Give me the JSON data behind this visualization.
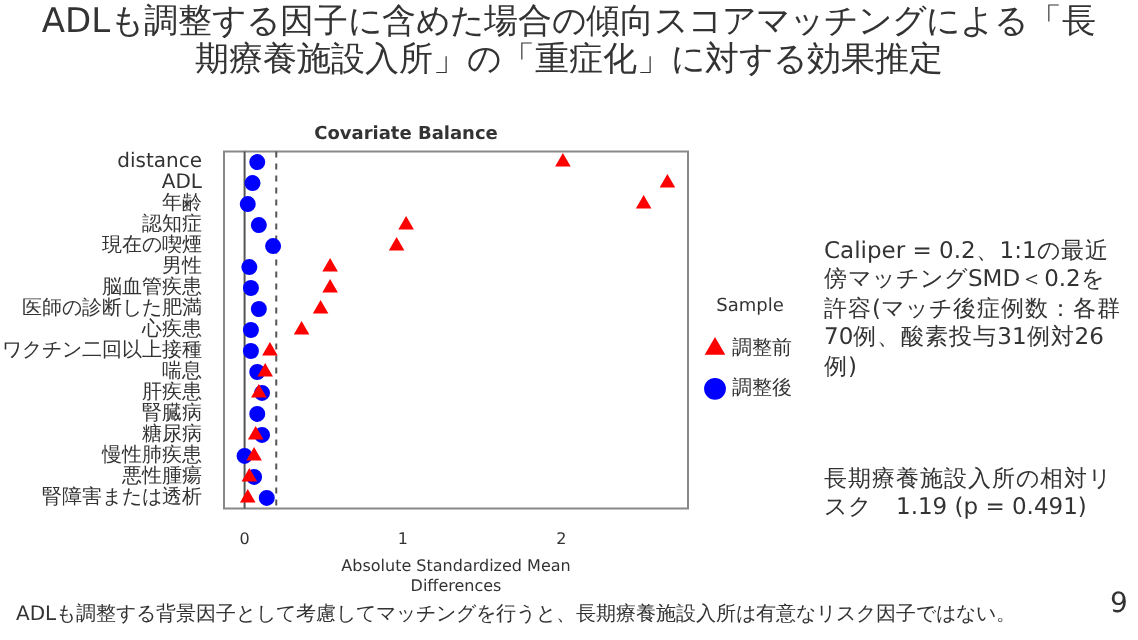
{
  "chart_data": {
    "type": "scatter",
    "orientation": "horizontal",
    "title": "ADLも調整する因子に含めた場合の傾向スコアマッチングによる「長期療養施設入所」の「重症化」に対する効果推定",
    "subtitle": "Covariate Balance",
    "xlabel": "Absolute Standardized Mean\nDifferences",
    "legend_title": "Sample",
    "categories": [
      "distance",
      "ADL",
      "年齢",
      "認知症",
      "現在の喫煙",
      "男性",
      "脳血管疾患",
      "医師の診断した肥満",
      "心疾患",
      "ワクチン二回以上接種",
      "喘息",
      "肝疾患",
      "腎臓病",
      "糖尿病",
      "慢性肺疾患",
      "悪性腫瘍",
      "腎障害または透析"
    ],
    "series": [
      {
        "name": "調整前",
        "color": "#ff0000",
        "marker": "triangle",
        "values": [
          2.01,
          2.67,
          2.52,
          1.02,
          0.96,
          0.54,
          0.54,
          0.48,
          0.36,
          0.16,
          0.13,
          0.09,
          null,
          0.07,
          0.06,
          0.03,
          0.02
        ]
      },
      {
        "name": "調整後",
        "color": "#0000ff",
        "marker": "circle",
        "values": [
          0.08,
          0.05,
          0.02,
          0.09,
          0.18,
          0.03,
          0.04,
          0.09,
          0.04,
          0.04,
          0.08,
          0.11,
          0.08,
          0.11,
          0.0,
          0.06,
          0.14
        ]
      }
    ],
    "xlim": [
      -0.13,
      2.8
    ],
    "xticks": [
      0,
      1,
      2
    ],
    "ref_lines": [
      {
        "axis": "x",
        "value": 0,
        "line_style": "solid",
        "color": "#555555"
      },
      {
        "axis": "x",
        "value": 0.2,
        "line_style": "dashed",
        "color": "#555555"
      }
    ],
    "grid": false,
    "legend": "right",
    "annotations": [
      "Caliper = 0.2、1:1の最近傍マッチングSMD＜0.2を許容(マッチ後症例数：各群70例、酸素投与31例対26例)",
      "長期療養施設入所の相対リスク　1.19 (p = 0.491)",
      "ADLも調整する背景因子として考慮してマッチングを行うと、長期療養施設入所は有意なリスク因子ではない。",
      "9"
    ]
  }
}
